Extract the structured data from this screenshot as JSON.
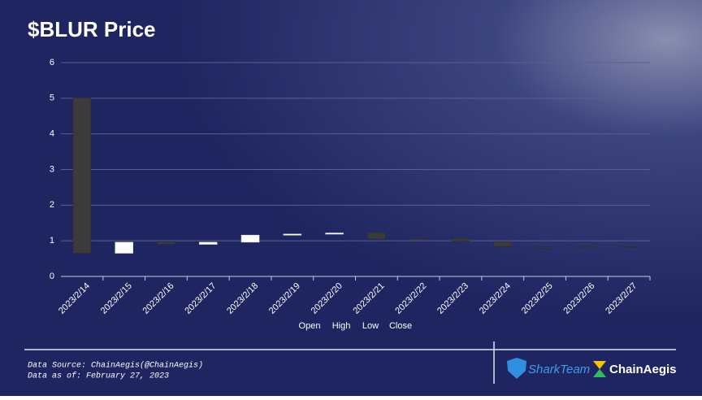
{
  "chart_data": {
    "type": "candlestick",
    "title": "$BLUR Price",
    "categories": [
      "2023/2/14",
      "2023/2/15",
      "2023/2/16",
      "2023/2/17",
      "2023/2/18",
      "2023/2/19",
      "2023/2/20",
      "2023/2/21",
      "2023/2/22",
      "2023/2/23",
      "2023/2/24",
      "2023/2/25",
      "2023/2/26",
      "2023/2/27"
    ],
    "open": [
      5.0,
      0.65,
      0.97,
      0.9,
      0.96,
      1.17,
      1.2,
      1.23,
      1.06,
      1.07,
      0.98,
      0.83,
      0.84,
      0.84
    ],
    "high": [
      5.0,
      0.96,
      0.97,
      0.96,
      1.16,
      1.19,
      1.22,
      1.23,
      1.06,
      1.07,
      0.98,
      0.83,
      0.84,
      0.84
    ],
    "low": [
      0.65,
      0.65,
      0.9,
      0.9,
      0.96,
      1.17,
      1.2,
      1.05,
      1.04,
      0.98,
      0.84,
      0.81,
      0.83,
      0.83
    ],
    "close": [
      0.65,
      0.96,
      0.9,
      0.96,
      1.16,
      1.19,
      1.22,
      1.05,
      1.04,
      0.98,
      0.84,
      0.81,
      0.83,
      0.83
    ],
    "up_color": "#ffffff",
    "down_color": "#3b3b3b",
    "legend": [
      "Open",
      "High",
      "Low",
      "Close"
    ],
    "ylim": [
      0,
      6
    ],
    "yticks": [
      0,
      1,
      2,
      3,
      4,
      5,
      6
    ],
    "grid": true
  },
  "footer": {
    "source": "Data Source: ChainAegis(@ChainAegis)",
    "date": "Data as of: February 27, 2023"
  },
  "logos": [
    "SharkTeam",
    "ChainAegis"
  ]
}
